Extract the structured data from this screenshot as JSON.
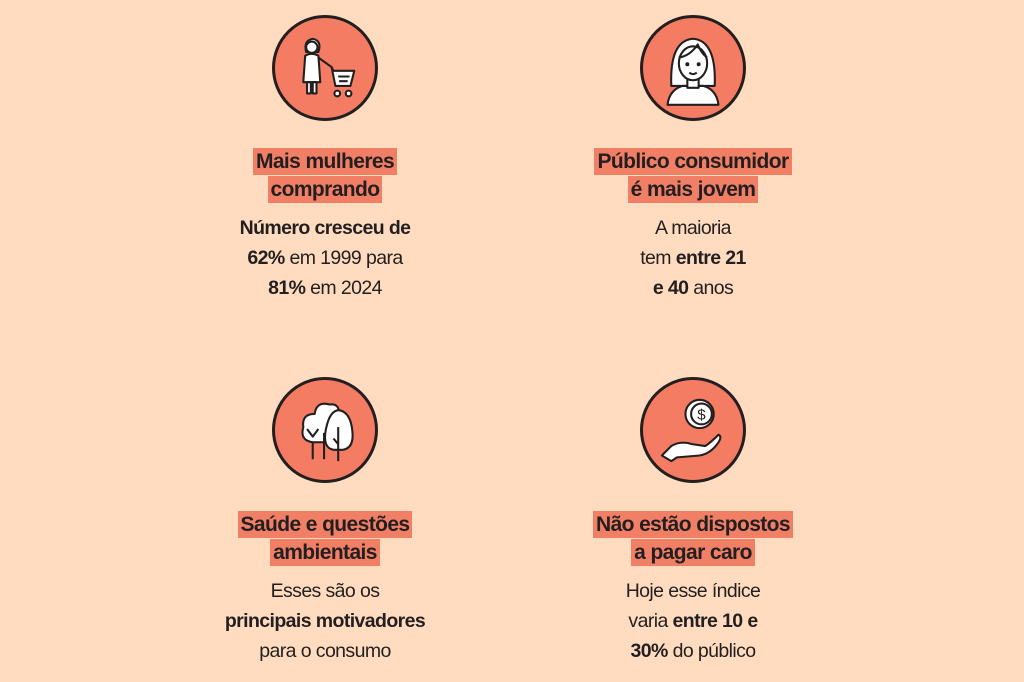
{
  "colors": {
    "background": "#FFDCBF",
    "accent": "#F47C62",
    "highlight": "#F07F66",
    "text": "#231f20"
  },
  "cards": [
    {
      "icon": "woman-shopping-cart-icon",
      "title": [
        "Mais mulheres",
        "comprando"
      ],
      "body": [
        [
          "Número cresceu de",
          ""
        ],
        [
          "62%",
          " em 1999 para"
        ],
        [
          "81%",
          " em 2024"
        ]
      ]
    },
    {
      "icon": "young-woman-icon",
      "title": [
        "Público consumidor",
        "é mais jovem"
      ],
      "body": [
        [
          "",
          "A maioria"
        ],
        [
          "tem ",
          "entre 21"
        ],
        [
          "e 40",
          " anos"
        ]
      ]
    },
    {
      "icon": "trees-icon",
      "title": [
        "Saúde e questões",
        "ambientais"
      ],
      "body": [
        [
          "",
          "Esses são os"
        ],
        [
          "principais motivadores",
          ""
        ],
        [
          "",
          "para o consumo"
        ]
      ]
    },
    {
      "icon": "hand-coin-icon",
      "title": [
        "Não estão dispostos",
        "a pagar caro"
      ],
      "body": [
        [
          "",
          "Hoje esse índice"
        ],
        [
          "varia ",
          "entre 10 e"
        ],
        [
          "30%",
          " do público"
        ]
      ]
    }
  ]
}
